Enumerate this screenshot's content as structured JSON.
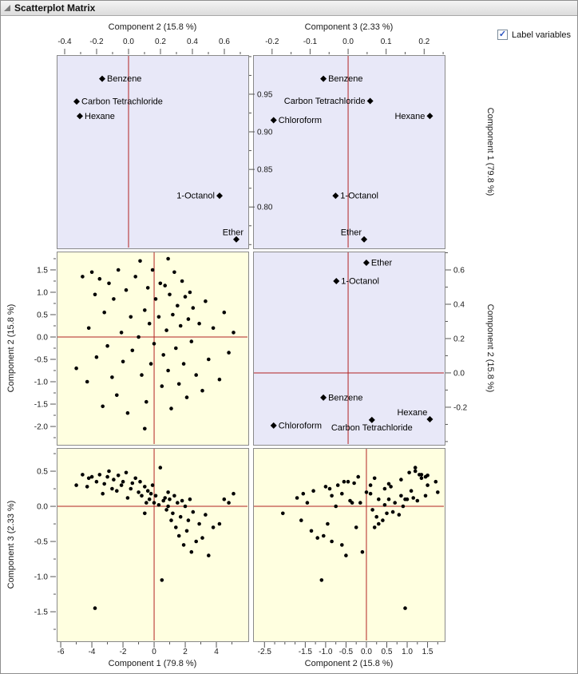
{
  "window": {
    "title": "Scatterplot Matrix"
  },
  "controls": {
    "label_variables": {
      "label": "Label variables",
      "checked": true
    }
  },
  "colors": {
    "loading_bg": "#e8e8f8",
    "score_bg": "#ffffe0",
    "ref_line": "#b22222",
    "panel_border": "#8a8a8a",
    "point": "#000000",
    "tick": "#555555",
    "check": "#2a52be"
  },
  "chart_data": {
    "type": "scatter",
    "title": "Scatterplot Matrix",
    "description": "Principal component scatterplot matrix. Lavender panels show variable loadings (labeled diamonds); yellow panels show observation scores (dots). Red reference lines mark zero.",
    "components": [
      "Component 1 (79.8 %)",
      "Component 2 (15.8 %)",
      "Component 3 (2.33 %)"
    ],
    "panels": [
      {
        "id": "c2-c1",
        "row": 0,
        "col": 0,
        "kind": "loading",
        "xlim": [
          -0.45,
          0.75
        ],
        "ylim": [
          0.745,
          1.002
        ],
        "ref_x": 0,
        "points": [
          {
            "label": "Benzene",
            "x": -0.165,
            "y": 0.9705,
            "side": "right"
          },
          {
            "label": "Carbon Tetrachloride",
            "x": -0.325,
            "y": 0.9403,
            "side": "right"
          },
          {
            "label": "Hexane",
            "x": -0.305,
            "y": 0.9209,
            "side": "right"
          },
          {
            "label": "1-Octanol",
            "x": 0.57,
            "y": 0.815,
            "side": "left"
          },
          {
            "label": "Ether",
            "x": 0.675,
            "y": 0.757,
            "side": "above"
          }
        ]
      },
      {
        "id": "c3-c1",
        "row": 0,
        "col": 1,
        "kind": "loading",
        "xlim": [
          -0.25,
          0.254
        ],
        "ylim": [
          0.745,
          1.002
        ],
        "ref_x": 0,
        "points": [
          {
            "label": "Benzene",
            "x": -0.065,
            "y": 0.9705,
            "side": "right"
          },
          {
            "label": "Carbon Tetrachloride",
            "x": 0.058,
            "y": 0.941,
            "side": "left"
          },
          {
            "label": "Chloroform",
            "x": -0.196,
            "y": 0.9155,
            "side": "right"
          },
          {
            "label": "Hexane",
            "x": 0.215,
            "y": 0.921,
            "side": "left"
          },
          {
            "label": "1-Octanol",
            "x": -0.033,
            "y": 0.815,
            "side": "right"
          },
          {
            "label": "Ether",
            "x": 0.042,
            "y": 0.757,
            "side": "above-left"
          }
        ]
      },
      {
        "id": "c1-c2",
        "row": 1,
        "col": 0,
        "kind": "score",
        "xlim": [
          -6.26,
          6.05
        ],
        "ylim": [
          -2.41,
          1.91
        ],
        "ref_x": 0,
        "ref_y": 0,
        "dims": [
          0,
          1
        ]
      },
      {
        "id": "c3-c2",
        "row": 1,
        "col": 1,
        "kind": "loading",
        "xlim": [
          -0.25,
          0.254
        ],
        "ylim": [
          -0.419,
          0.707
        ],
        "ref_x": 0,
        "ref_y": 0,
        "points": [
          {
            "label": "Ether",
            "x": 0.048,
            "y": 0.642,
            "side": "right"
          },
          {
            "label": "1-Octanol",
            "x": -0.031,
            "y": 0.535,
            "side": "right"
          },
          {
            "label": "Benzene",
            "x": -0.065,
            "y": -0.144,
            "side": "right"
          },
          {
            "label": "Chloroform",
            "x": -0.196,
            "y": -0.307,
            "side": "right"
          },
          {
            "label": "Carbon Tetrachloride",
            "x": 0.0625,
            "y": -0.274,
            "side": "below"
          },
          {
            "label": "Hexane",
            "x": 0.215,
            "y": -0.27,
            "side": "above-left"
          }
        ]
      },
      {
        "id": "c1-c3",
        "row": 2,
        "col": 0,
        "kind": "score",
        "xlim": [
          -6.26,
          6.05
        ],
        "ylim": [
          -1.92,
          0.83
        ],
        "ref_x": 0,
        "ref_y": 0,
        "dims": [
          0,
          2
        ]
      },
      {
        "id": "c2-c3",
        "row": 2,
        "col": 1,
        "kind": "score",
        "xlim": [
          -2.78,
          1.92
        ],
        "ylim": [
          -1.92,
          0.83
        ],
        "ref_x": 0,
        "ref_y": 0,
        "dims": [
          1,
          2
        ]
      }
    ],
    "axes": [
      {
        "edge": "top",
        "panel": "c2-c1",
        "title": "Component 2 (15.8 %)",
        "ticks": [
          -0.4,
          -0.2,
          0,
          0.2,
          0.4,
          0.6
        ],
        "labels": [
          "-0.4",
          "-0.2",
          "0.0",
          "0.2",
          "0.4",
          "0.6"
        ],
        "minor": [
          -0.3,
          -0.1,
          0.1,
          0.3,
          0.5,
          0.7
        ]
      },
      {
        "edge": "top",
        "panel": "c3-c1",
        "title": "Component 3 (2.33 %)",
        "ticks": [
          -0.2,
          -0.1,
          0,
          0.1,
          0.2
        ],
        "labels": [
          "-0.2",
          "-0.1",
          "0.0",
          "0.1",
          "0.2"
        ],
        "minor": [
          -0.15,
          -0.05,
          0.05,
          0.15,
          0.25
        ]
      },
      {
        "edge": "right",
        "panel": "c2-c1",
        "title": "Component 1 (79.8 %)",
        "ticks": [
          0.95,
          0.9,
          0.85,
          0.8
        ],
        "labels": [
          "0.95",
          "0.90",
          "0.85",
          "0.80"
        ],
        "minor": [
          1.0,
          0.975,
          0.925,
          0.875,
          0.825,
          0.775,
          0.75
        ]
      },
      {
        "edge": "right",
        "panel": "c3-c2",
        "title": "Component 2 (15.8 %)",
        "ticks": [
          0.6,
          0.4,
          0.2,
          0,
          -0.2
        ],
        "labels": [
          "0.6",
          "0.4",
          "0.2",
          "0.0",
          "-0.2"
        ],
        "minor": [
          0.7,
          0.5,
          0.3,
          0.1,
          -0.1,
          -0.3,
          -0.4
        ]
      },
      {
        "edge": "left",
        "panel": "c1-c2",
        "title": "Component 2 (15.8 %)",
        "ticks": [
          1.5,
          1,
          0.5,
          0,
          -0.5,
          -1,
          -1.5,
          -2
        ],
        "labels": [
          "1.5",
          "1.0",
          "0.5",
          "0.0",
          "-0.5",
          "-1.0",
          "-1.5",
          "-2.0"
        ],
        "minor": [
          1.75,
          1.25,
          0.75,
          0.25,
          -0.25,
          -0.75,
          -1.25,
          -1.75,
          -2.25
        ]
      },
      {
        "edge": "left",
        "panel": "c1-c3",
        "title": "Component 3 (2.33 %)",
        "ticks": [
          0.5,
          0,
          -0.5,
          -1,
          -1.5
        ],
        "labels": [
          "0.5",
          "0.0",
          "-0.5",
          "-1.0",
          "-1.5"
        ],
        "minor": [
          0.75,
          0.25,
          -0.25,
          -0.75,
          -1.25,
          -1.75
        ]
      },
      {
        "edge": "bottom",
        "panel": "c1-c3",
        "title": "Component 1 (79.8 %)",
        "ticks": [
          -6,
          -4,
          -2,
          0,
          2,
          4
        ],
        "labels": [
          "-6",
          "-4",
          "-2",
          "0",
          "2",
          "4"
        ],
        "minor": [
          -5,
          -3,
          -1,
          1,
          3,
          5
        ]
      },
      {
        "edge": "bottom",
        "panel": "c2-c3",
        "title": "Component 2 (15.8 %)",
        "ticks": [
          -2.5,
          -1.5,
          -1,
          -0.5,
          0,
          0.5,
          1,
          1.5
        ],
        "labels": [
          "-2.5",
          "-1.5",
          "-1.0",
          "-0.5",
          "0.0",
          "0.5",
          "1.0",
          "1.5"
        ],
        "minor": [
          -2.25,
          -2,
          -1.75,
          -1.25,
          -0.75,
          -0.25,
          0.25,
          0.75,
          1.25,
          1.75
        ]
      }
    ],
    "scores": [
      [
        -5.0,
        -0.7,
        0.3
      ],
      [
        -4.6,
        1.35,
        0.45
      ],
      [
        -4.3,
        -1.0,
        0.28
      ],
      [
        -4.2,
        0.2,
        0.4
      ],
      [
        -4.0,
        1.45,
        0.42
      ],
      [
        -3.8,
        0.95,
        -1.45
      ],
      [
        -3.7,
        -0.45,
        0.35
      ],
      [
        -3.5,
        1.3,
        0.45
      ],
      [
        -3.3,
        -1.55,
        0.18
      ],
      [
        -3.2,
        0.55,
        0.32
      ],
      [
        -3.0,
        -0.2,
        0.42
      ],
      [
        -2.9,
        1.2,
        0.5
      ],
      [
        -2.7,
        -0.9,
        0.25
      ],
      [
        -2.6,
        0.85,
        0.38
      ],
      [
        -2.4,
        -1.3,
        0.22
      ],
      [
        -2.3,
        1.5,
        0.44
      ],
      [
        -2.1,
        0.1,
        0.3
      ],
      [
        -2.0,
        -0.55,
        0.35
      ],
      [
        -1.8,
        1.05,
        0.48
      ],
      [
        -1.7,
        -1.7,
        0.12
      ],
      [
        -1.5,
        0.45,
        0.25
      ],
      [
        -1.4,
        -0.3,
        0.33
      ],
      [
        -1.2,
        1.35,
        0.4
      ],
      [
        -1.0,
        0.0,
        0.2
      ],
      [
        -0.9,
        1.7,
        0.35
      ],
      [
        -0.8,
        -0.85,
        0.15
      ],
      [
        -0.6,
        -2.05,
        -0.1
      ],
      [
        -0.6,
        0.6,
        0.28
      ],
      [
        -0.5,
        -1.45,
        0.05
      ],
      [
        -0.4,
        1.1,
        0.22
      ],
      [
        -0.3,
        0.3,
        0.1
      ],
      [
        -0.2,
        -0.6,
        0.18
      ],
      [
        -0.1,
        1.5,
        0.3
      ],
      [
        0.0,
        -0.15,
        0.05
      ],
      [
        0.1,
        0.85,
        0.15
      ],
      [
        0.3,
        0.45,
        0.02
      ],
      [
        0.4,
        1.2,
        0.55
      ],
      [
        0.5,
        -1.1,
        -1.05
      ],
      [
        0.6,
        -0.4,
        0.08
      ],
      [
        0.7,
        1.15,
        0.12
      ],
      [
        0.8,
        0.15,
        -0.05
      ],
      [
        0.9,
        1.75,
        0.2
      ],
      [
        0.9,
        -0.75,
        0.0
      ],
      [
        1.0,
        0.95,
        0.1
      ],
      [
        1.1,
        -1.6,
        -0.2
      ],
      [
        1.2,
        0.5,
        -0.1
      ],
      [
        1.3,
        1.45,
        0.15
      ],
      [
        1.4,
        -0.25,
        -0.3
      ],
      [
        1.5,
        0.7,
        0.05
      ],
      [
        1.6,
        -1.05,
        -0.42
      ],
      [
        1.7,
        0.25,
        -0.15
      ],
      [
        1.8,
        1.25,
        0.08
      ],
      [
        1.9,
        -0.6,
        -0.55
      ],
      [
        2.0,
        0.9,
        0.0
      ],
      [
        2.1,
        -1.35,
        -0.35
      ],
      [
        2.2,
        0.4,
        -0.2
      ],
      [
        2.3,
        1.0,
        0.1
      ],
      [
        2.4,
        -0.1,
        -0.65
      ],
      [
        2.5,
        0.65,
        -0.08
      ],
      [
        2.7,
        -0.85,
        -0.5
      ],
      [
        2.9,
        0.3,
        -0.25
      ],
      [
        3.1,
        -1.2,
        -0.45
      ],
      [
        3.3,
        0.8,
        -0.12
      ],
      [
        3.5,
        -0.5,
        -0.7
      ],
      [
        3.8,
        0.2,
        -0.3
      ],
      [
        4.2,
        -0.95,
        -0.25
      ],
      [
        4.5,
        0.55,
        0.1
      ],
      [
        4.8,
        -0.35,
        0.05
      ],
      [
        5.1,
        0.1,
        0.18
      ]
    ]
  }
}
